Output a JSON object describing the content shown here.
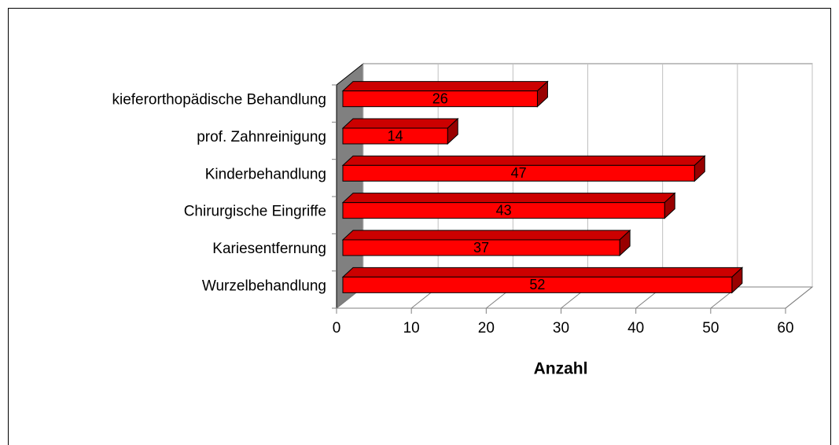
{
  "chart_data": {
    "type": "bar3d_horizontal",
    "categories": [
      "kieferorthopädische Behandlung",
      "prof. Zahnreinigung",
      "Kinderbehandlung",
      "Chirurgische Eingriffe",
      "Kariesentfernung",
      "Wurzelbehandlung"
    ],
    "values": [
      26,
      14,
      47,
      43,
      37,
      52
    ],
    "color": "#ff0000",
    "xlabel": "Anzahl",
    "xlim": [
      0,
      60
    ],
    "xticks": [
      0,
      10,
      20,
      30,
      40,
      50,
      60
    ],
    "grid": true
  }
}
